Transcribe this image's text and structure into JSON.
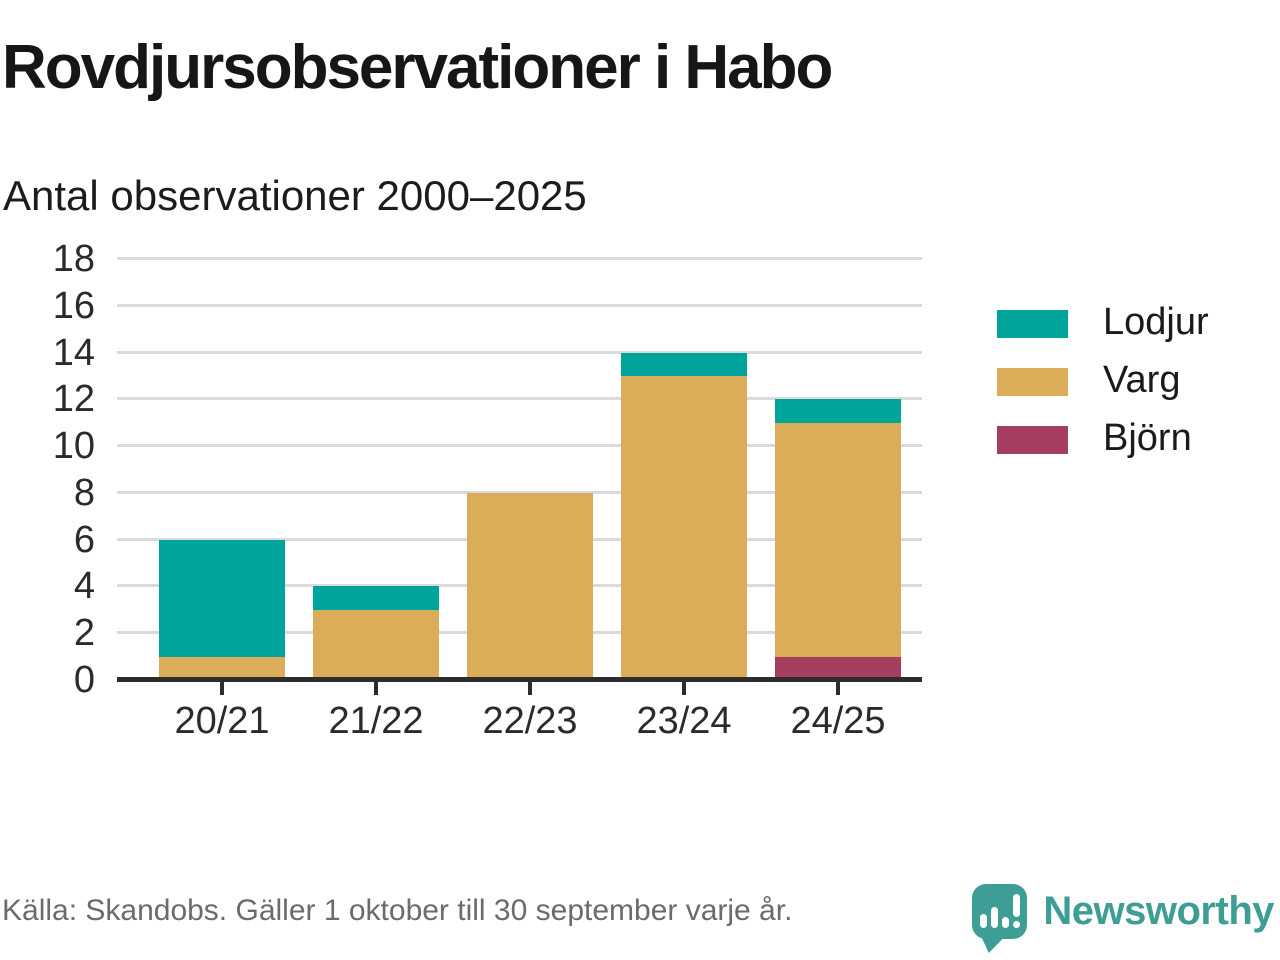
{
  "header": {
    "title": "Rovdjursobservationer i Habo",
    "subtitle": "Antal observationer 2000–2025"
  },
  "chart_data": {
    "type": "bar",
    "stacked": true,
    "title": "Rovdjursobservationer i Habo",
    "subtitle": "Antal observationer 2000–2025",
    "categories": [
      "20/21",
      "21/22",
      "22/23",
      "23/24",
      "24/25"
    ],
    "series": [
      {
        "name": "Lodjur",
        "color": "#00A49B",
        "values": [
          5,
          1,
          0,
          1,
          1
        ]
      },
      {
        "name": "Varg",
        "color": "#DBAD58",
        "values": [
          1,
          3,
          8,
          13,
          10
        ]
      },
      {
        "name": "Björn",
        "color": "#A53E60",
        "values": [
          0,
          0,
          0,
          0,
          1
        ]
      }
    ],
    "stack_order_bottom_to_top": [
      "Björn",
      "Varg",
      "Lodjur"
    ],
    "xlabel": "",
    "ylabel": "",
    "ylim": [
      0,
      18
    ],
    "ytick_step": 2,
    "grid": true,
    "legend_position": "right"
  },
  "footer": {
    "source": "Källa: Skandobs. Gäller 1 oktober till 30 september varje år.",
    "brand": "Newsworthy"
  },
  "colors": {
    "axis": "#2d2d2d",
    "gridline": "#dadada",
    "text": "#1a1a1a",
    "muted_text": "#6b6b6b",
    "brand_teal": "#3e9e96"
  },
  "icons": {
    "brand_icon": "newsworthy-speech-bubble-bar-chart-icon"
  }
}
